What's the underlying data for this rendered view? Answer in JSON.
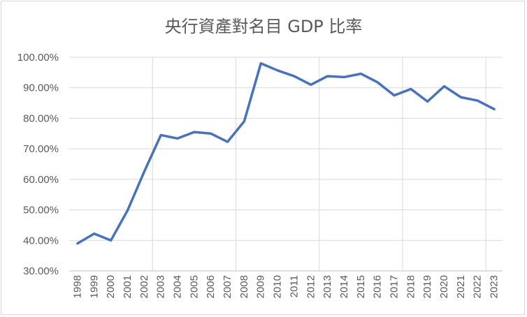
{
  "chart_data": {
    "type": "line",
    "title": "央行資產對名目 GDP 比率",
    "xlabel": "",
    "ylabel": "",
    "ylim": [
      30,
      100
    ],
    "y_ticks": [
      "30.00%",
      "40.00%",
      "50.00%",
      "60.00%",
      "70.00%",
      "80.00%",
      "90.00%",
      "100.00%"
    ],
    "grid": true,
    "legend": "none",
    "categories": [
      "1998",
      "1999",
      "2000",
      "2001",
      "2002",
      "2003",
      "2004",
      "2005",
      "2006",
      "2007",
      "2008",
      "2009",
      "2010",
      "2011",
      "2012",
      "2013",
      "2014",
      "2015",
      "2016",
      "2017",
      "2018",
      "2019",
      "2020",
      "2021",
      "2022",
      "2023"
    ],
    "series": [
      {
        "values": [
          39.0,
          42.2,
          40.0,
          49.8,
          62.5,
          74.5,
          73.4,
          75.5,
          75.0,
          72.3,
          79.0,
          98.0,
          95.7,
          93.8,
          91.0,
          93.8,
          93.5,
          94.6,
          91.8,
          87.5,
          89.6,
          85.5,
          90.5,
          86.9,
          85.8,
          83.0
        ],
        "color": "#4472c4"
      }
    ]
  }
}
